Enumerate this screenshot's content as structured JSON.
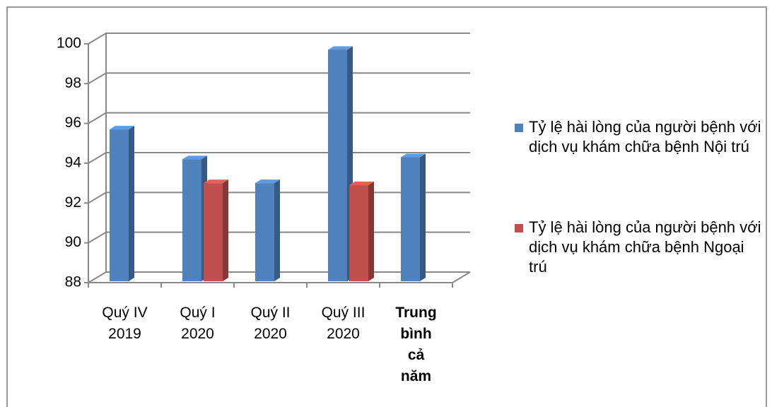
{
  "chart_data": {
    "type": "bar3d",
    "categories": [
      "Quý IV 2019",
      "Quý I 2020",
      "Quý II 2020",
      "Quý III 2020",
      "Trung bình cả năm"
    ],
    "series": [
      {
        "name": "Tỷ lệ hài lòng của người bệnh với dịch vụ khám chữa bệnh Nội trú",
        "color": "#4f81bd",
        "values": [
          95.7,
          94.2,
          93.0,
          99.7,
          94.3
        ]
      },
      {
        "name": "Tỷ lệ hài lòng của người bệnh với dịch vụ khám chữa bệnh Ngoại trú",
        "color": "#c0504d",
        "values": [
          null,
          93.0,
          null,
          92.9,
          null
        ]
      }
    ],
    "ylim": [
      88,
      100
    ],
    "yticks": [
      88,
      90,
      92,
      94,
      96,
      98,
      100
    ],
    "grid": true,
    "legend": "right"
  }
}
